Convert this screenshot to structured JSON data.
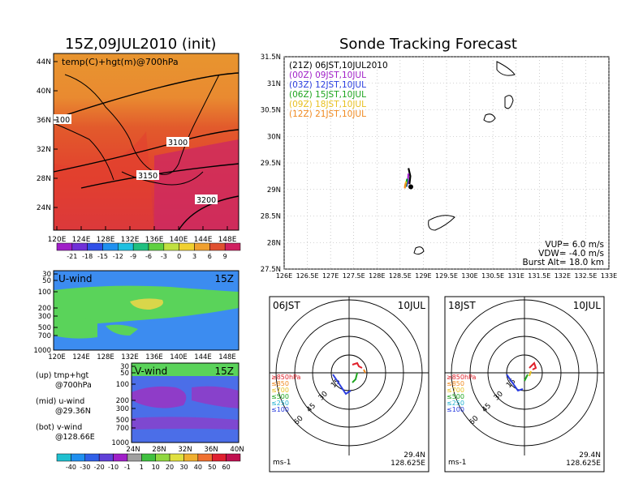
{
  "header": {
    "left_title": "15Z,09JUL2010 (init)",
    "right_title": "Sonde Tracking Forecast"
  },
  "colors": {
    "temp_warm": "#e8952f",
    "temp_mid": "#e34a2c",
    "temp_hot": "#cf2b5e",
    "u_bg": "#3c8cf0",
    "u_mid": "#5ad35a",
    "u_core": "#d9d64a",
    "v_purple": "#8f3cc8",
    "v_bg": "#4b6ee8"
  },
  "map_panel": {
    "label": "temp(C)+hgt(m)@700hPa",
    "lat_ticks": [
      "44N",
      "40N",
      "36N",
      "32N",
      "28N",
      "24N"
    ],
    "lon_ticks": [
      "120E",
      "124E",
      "128E",
      "132E",
      "136E",
      "140E",
      "144E",
      "148E"
    ],
    "contour_labels": [
      "100",
      "3100",
      "3150",
      "3200"
    ],
    "colorbar_labels": [
      "-21",
      "-18",
      "-15",
      "-12",
      "-9",
      "-6",
      "-3",
      "0",
      "3",
      "6",
      "9"
    ]
  },
  "u_panel": {
    "label": "U-wind",
    "time": "15Z",
    "p_ticks": [
      "30",
      "50",
      "100",
      "200",
      "300",
      "500",
      "700",
      "1000"
    ],
    "lon_ticks": [
      "120E",
      "124E",
      "128E",
      "132E",
      "136E",
      "140E",
      "144E",
      "148E"
    ]
  },
  "v_panel": {
    "label": "V-wind",
    "time": "15Z",
    "p_ticks": [
      "30",
      "50",
      "100",
      "200",
      "300",
      "500",
      "700",
      "1000"
    ],
    "lat_ticks": [
      "24N",
      "28N",
      "32N",
      "36N",
      "40N"
    ]
  },
  "legend_notes": [
    {
      "line1": "(up) tmp+hgt",
      "line2": "@700hPa"
    },
    {
      "line1": "(mid) u-wind",
      "line2": "@29.36N"
    },
    {
      "line1": "(bot) v-wind",
      "line2": "@128.66E"
    }
  ],
  "wind_colorbar_labels": [
    "-40",
    "-30",
    "-20",
    "-10",
    "-1",
    "1",
    "10",
    "20",
    "30",
    "40",
    "50",
    "60"
  ],
  "track_panel": {
    "lat_ticks": [
      "31.5N",
      "31N",
      "30.5N",
      "30N",
      "29.5N",
      "29N",
      "28.5N",
      "28N",
      "27.5N"
    ],
    "lon_ticks": [
      "126E",
      "126.5E",
      "127E",
      "127.5E",
      "128E",
      "128.5E",
      "129E",
      "129.5E",
      "130E",
      "130.5E",
      "131E",
      "131.5E",
      "132E",
      "132.5E",
      "133E"
    ],
    "legend": [
      {
        "text": "(21Z)  06JST,10JUL2010",
        "color": "#000000"
      },
      {
        "text": "(00Z)  09JST,10JUL",
        "color": "#a020c8"
      },
      {
        "text": "(03Z)  12JST,10JUL",
        "color": "#2a3de0"
      },
      {
        "text": "(06Z)  15JST,10JUL",
        "color": "#1ea51e"
      },
      {
        "text": "(09Z)  18JST,10JUL",
        "color": "#e8c020"
      },
      {
        "text": "(12Z)  21JST,10JUL",
        "color": "#f08a20"
      }
    ],
    "params": [
      "VUP=  6.0  m/s",
      "VDW=  -4.0  m/s",
      "Burst Alt=  18.0  km"
    ]
  },
  "hodo_left": {
    "time_label": "06JST",
    "date_label": "10JUL",
    "rings": [
      "15",
      "30",
      "45",
      "60"
    ],
    "levels": [
      {
        "text": "≥850hPa",
        "color": "#e0202a"
      },
      {
        "text": "≤850",
        "color": "#f08a20"
      },
      {
        "text": "≤700",
        "color": "#e8c020"
      },
      {
        "text": "≤500",
        "color": "#1ea51e"
      },
      {
        "text": "≤250",
        "color": "#20b0d0"
      },
      {
        "text": "≤100",
        "color": "#2a3de0"
      }
    ],
    "unit": "ms-1",
    "lat": "29.4N",
    "lon": "128.625E"
  },
  "hodo_right": {
    "time_label": "18JST",
    "date_label": "10JUL",
    "rings": [
      "15",
      "30",
      "45",
      "60"
    ],
    "levels": [
      {
        "text": "≥850hPa",
        "color": "#e0202a"
      },
      {
        "text": "≤850",
        "color": "#f08a20"
      },
      {
        "text": "≤700",
        "color": "#e8c020"
      },
      {
        "text": "≤500",
        "color": "#1ea51e"
      },
      {
        "text": "≤250",
        "color": "#20b0d0"
      },
      {
        "text": "≤100",
        "color": "#2a3de0"
      }
    ],
    "unit": "ms-1",
    "lat": "29.4N",
    "lon": "128.625E"
  },
  "chart_data": [
    {
      "type": "heatmap",
      "title": "temp(C)+hgt(m)@700hPa",
      "xlabel": "",
      "ylabel": "",
      "xlim": [
        120,
        150
      ],
      "ylim": [
        22,
        47
      ],
      "colorbar": [
        -21,
        -18,
        -15,
        -12,
        -9,
        -6,
        -3,
        0,
        3,
        6,
        9
      ],
      "contour_labels": [
        3100,
        3150,
        3200
      ]
    },
    {
      "type": "heatmap",
      "title": "U-wind",
      "xlim": [
        120,
        150
      ],
      "y_pressure_levels": [
        30,
        50,
        100,
        200,
        300,
        500,
        700,
        1000
      ]
    },
    {
      "type": "heatmap",
      "title": "V-wind",
      "xlim": [
        24,
        40
      ],
      "y_pressure_levels": [
        30,
        50,
        100,
        200,
        300,
        500,
        700,
        1000
      ],
      "colorbar": [
        -40,
        -30,
        -20,
        -10,
        -1,
        1,
        10,
        20,
        30,
        40,
        50,
        60
      ]
    },
    {
      "type": "line",
      "title": "Sonde Tracking Forecast",
      "xlim": [
        126,
        133
      ],
      "ylim": [
        27.5,
        31.5
      ],
      "series": [
        {
          "name": "(21Z)  06JST,10JUL2010",
          "points": [
            [
              128.7,
              29.1
            ],
            [
              128.72,
              29.25
            ],
            [
              128.68,
              29.4
            ]
          ]
        },
        {
          "name": "(00Z)  09JST,10JUL",
          "points": [
            [
              128.66,
              29.1
            ],
            [
              128.68,
              29.3
            ]
          ]
        },
        {
          "name": "(03Z)  12JST,10JUL",
          "points": [
            [
              128.64,
              29.05
            ],
            [
              128.66,
              29.2
            ]
          ]
        },
        {
          "name": "(06Z)  15JST,10JUL",
          "points": [
            [
              128.62,
              29.05
            ],
            [
              128.65,
              29.2
            ]
          ]
        },
        {
          "name": "(09Z)  18JST,10JUL",
          "points": [
            [
              128.6,
              29.05
            ],
            [
              128.63,
              29.15
            ]
          ]
        },
        {
          "name": "(12Z)  21JST,10JUL",
          "points": [
            [
              128.6,
              29.02
            ],
            [
              128.62,
              29.12
            ]
          ]
        }
      ]
    }
  ]
}
